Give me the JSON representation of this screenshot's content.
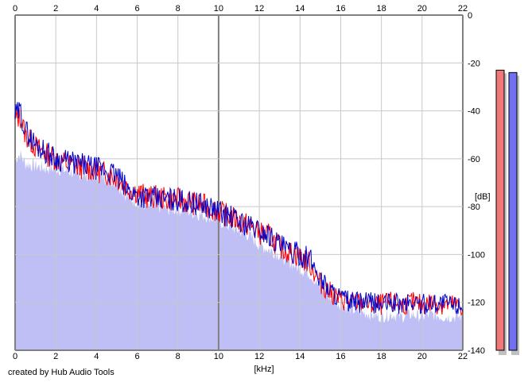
{
  "footer": {
    "credit": "created by Hub Audio Tools"
  },
  "colors": {
    "background": "#ffffff",
    "grid": "#c8c8c8",
    "grid_major": "#808080",
    "fill": "#bfbff5",
    "left_channel": "#ff0000",
    "right_channel": "#0000cc",
    "meter_left_fill": "#f07878",
    "meter_right_fill": "#7070f0",
    "meter_shadow": "#c0c0c0"
  },
  "chart_data": {
    "type": "line",
    "title": "",
    "xlabel": "[kHz]",
    "ylabel": "[dB]",
    "xlim": [
      0,
      22
    ],
    "ylim": [
      -140,
      0
    ],
    "x_ticks": [
      "0",
      "2",
      "4",
      "6",
      "8",
      "10",
      "12",
      "14",
      "16",
      "18",
      "20",
      "22"
    ],
    "x_tick_values": [
      0,
      2,
      4,
      6,
      8,
      10,
      12,
      14,
      16,
      18,
      20,
      22
    ],
    "y_ticks": [
      "0",
      "-20",
      "-40",
      "-60",
      "-80",
      "-100",
      "-120",
      "-140"
    ],
    "y_tick_values": [
      0,
      -20,
      -40,
      -60,
      -80,
      -100,
      -120,
      -140
    ],
    "grid": true,
    "x": [
      0,
      0.25,
      0.5,
      1,
      1.5,
      2,
      2.5,
      3,
      3.5,
      4,
      4.5,
      5,
      5.5,
      6,
      6.5,
      7,
      7.5,
      8,
      8.5,
      9,
      9.5,
      10,
      10.5,
      11,
      11.5,
      12,
      12.5,
      13,
      13.5,
      14,
      14.5,
      15,
      15.5,
      16,
      16.5,
      17,
      17.5,
      18,
      18.5,
      19,
      19.5,
      20,
      20.5,
      21,
      21.5,
      22
    ],
    "series": [
      {
        "channel": "left",
        "values": [
          -44,
          -42,
          -50,
          -55,
          -58,
          -60,
          -62,
          -63,
          -64,
          -65,
          -66,
          -68,
          -72,
          -74,
          -76,
          -76,
          -77,
          -77,
          -78,
          -79,
          -80,
          -82,
          -84,
          -86,
          -88,
          -91,
          -92,
          -97,
          -99,
          -101,
          -104,
          -112,
          -116,
          -119,
          -120,
          -120,
          -121,
          -121,
          -120,
          -121,
          -120,
          -121,
          -120,
          -121,
          -121,
          -122
        ]
      },
      {
        "channel": "right",
        "values": [
          -42,
          -40,
          -48,
          -54,
          -57,
          -60,
          -61,
          -62,
          -63,
          -64,
          -65,
          -67,
          -73,
          -75,
          -76,
          -77,
          -77,
          -77,
          -78,
          -79,
          -80,
          -82,
          -84,
          -86,
          -88,
          -90,
          -92,
          -96,
          -99,
          -100,
          -102,
          -110,
          -115,
          -118,
          -120,
          -120,
          -120,
          -121,
          -120,
          -121,
          -120,
          -121,
          -120,
          -120,
          -121,
          -121
        ]
      }
    ],
    "fill_series": {
      "values": [
        -60,
        -58,
        -62,
        -63,
        -64,
        -64,
        -65,
        -66,
        -67,
        -67,
        -68,
        -70,
        -76,
        -78,
        -80,
        -80,
        -81,
        -81,
        -82,
        -83,
        -84,
        -86,
        -88,
        -90,
        -92,
        -96,
        -98,
        -100,
        -103,
        -106,
        -108,
        -114,
        -118,
        -121,
        -123,
        -124,
        -125,
        -126,
        -125,
        -126,
        -125,
        -126,
        -125,
        -126,
        -126,
        -126
      ]
    },
    "meters": [
      {
        "channel": "left",
        "level_db": -23
      },
      {
        "channel": "right",
        "level_db": -24
      }
    ]
  }
}
